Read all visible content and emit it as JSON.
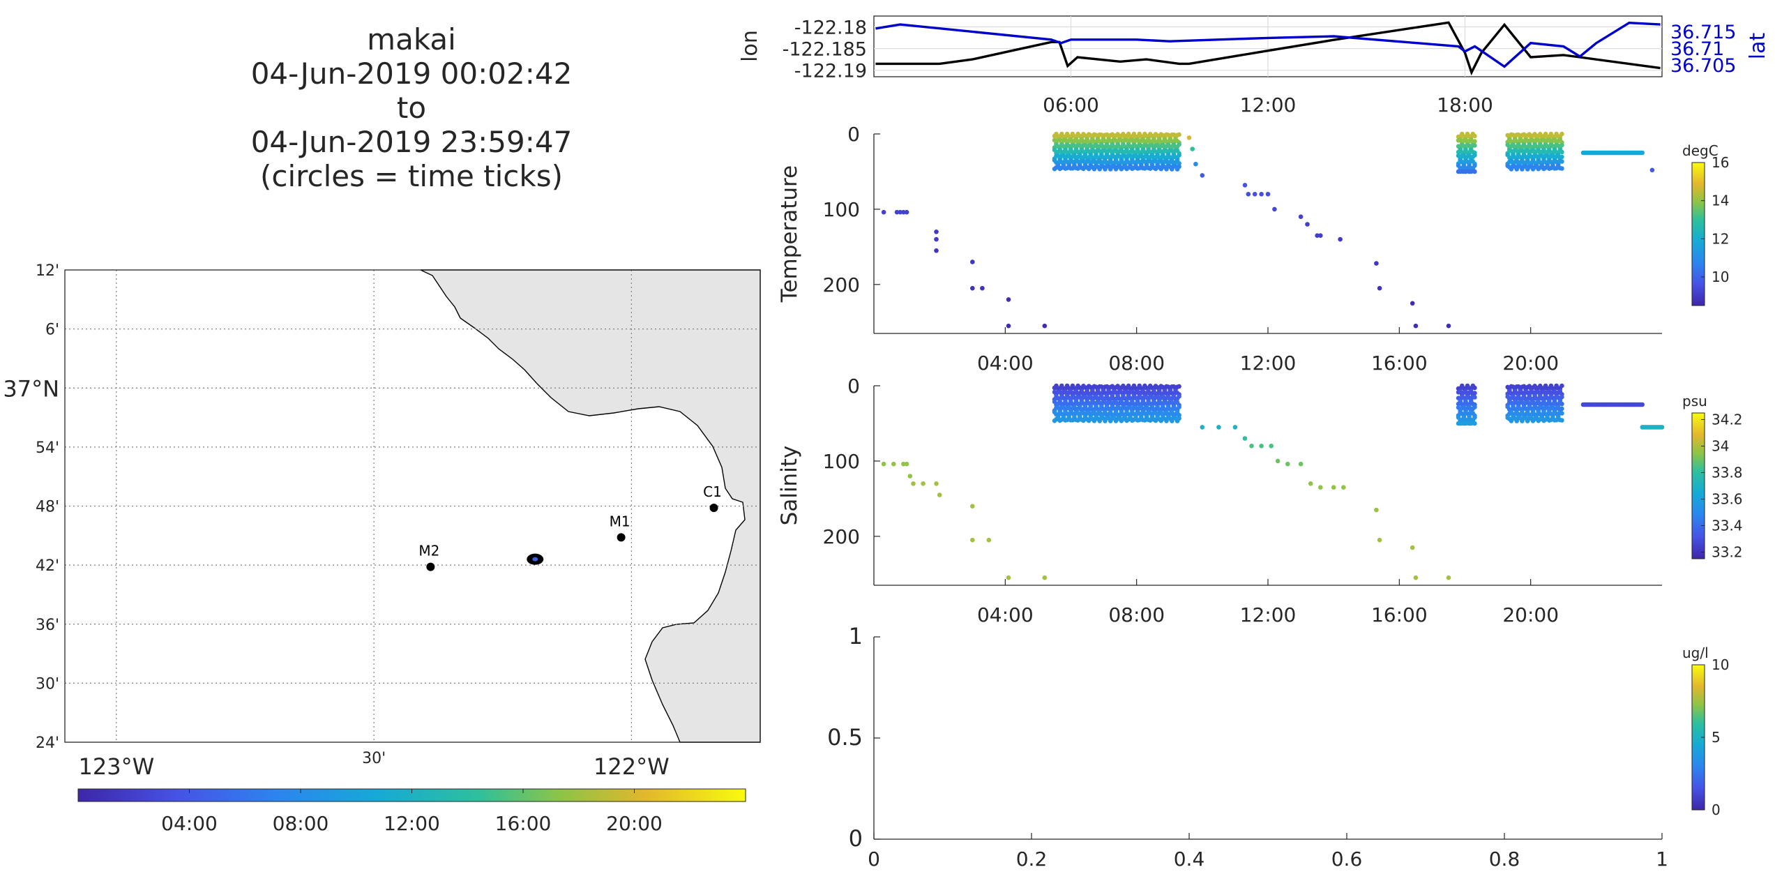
{
  "title": {
    "line1": "makai",
    "line2": "04-Jun-2019 00:02:42",
    "line3": "to",
    "line4": "04-Jun-2019 23:59:47",
    "line5": "(circles = time ticks)"
  },
  "chart_data": [
    {
      "type": "map",
      "lat_ticks": [
        "12'",
        "6'",
        "37°N",
        "54'",
        "48'",
        "42'",
        "36'",
        "30'",
        "24'"
      ],
      "lat_values": [
        37.2,
        37.1,
        37.0,
        36.9,
        36.8,
        36.7,
        36.6,
        36.5,
        36.4
      ],
      "lon_ticks": [
        "123°W",
        "30'",
        "122°W"
      ],
      "lon_values": [
        -123.0,
        -122.5,
        -122.0
      ],
      "xlim": [
        -123.1,
        -121.75
      ],
      "ylim": [
        36.4,
        37.2
      ],
      "stations": [
        {
          "name": "C1",
          "lon": -121.84,
          "lat": 36.797
        },
        {
          "name": "M1",
          "lon": -122.02,
          "lat": 36.747
        },
        {
          "name": "M2",
          "lon": -122.39,
          "lat": 36.697
        }
      ],
      "vehicle_position": {
        "lon": -122.187,
        "lat": 36.71
      },
      "colorbar": {
        "ticks": [
          "04:00",
          "08:00",
          "12:00",
          "16:00",
          "20:00"
        ],
        "tick_values": [
          4,
          8,
          12,
          16,
          20
        ],
        "range": [
          0,
          24
        ]
      }
    },
    {
      "type": "line",
      "ylabel": "lon",
      "y2label": "lat",
      "x_ticks": [
        "06:00",
        "12:00",
        "18:00"
      ],
      "x_tick_values": [
        6,
        12,
        18
      ],
      "xlim": [
        0,
        24
      ],
      "ylim": [
        -122.1915,
        -122.1775
      ],
      "y_ticks": [
        "-122.18",
        "-122.185",
        "-122.19"
      ],
      "y_tick_values": [
        -122.18,
        -122.185,
        -122.19
      ],
      "y2lim": [
        36.7015,
        36.7195
      ],
      "y2_ticks": [
        "36.715",
        "36.71",
        "36.705"
      ],
      "y2_tick_values": [
        36.715,
        36.71,
        36.705
      ],
      "series": [
        {
          "name": "lon",
          "color": "#000000",
          "x": [
            0.05,
            2.0,
            3.0,
            4.2,
            5.4,
            5.65,
            5.9,
            6.2,
            7.5,
            8.3,
            9.3,
            9.6,
            12.0,
            14.0,
            17.5,
            18.0,
            18.2,
            18.5,
            19.2,
            20.0,
            21.0,
            21.5,
            23.95
          ],
          "y": [
            -122.1885,
            -122.1885,
            -122.1875,
            -122.1855,
            -122.1835,
            -122.1835,
            -122.189,
            -122.187,
            -122.188,
            -122.1875,
            -122.1885,
            -122.1885,
            -122.1855,
            -122.183,
            -122.179,
            -122.186,
            -122.1905,
            -122.186,
            -122.1795,
            -122.187,
            -122.1865,
            -122.187,
            -122.1895
          ]
        },
        {
          "name": "lat",
          "color": "#0000cc",
          "x": [
            0.05,
            0.8,
            5.4,
            5.7,
            6.0,
            8.0,
            9.0,
            12.0,
            14.0,
            17.8,
            18.0,
            18.3,
            18.6,
            19.2,
            20.0,
            21.0,
            21.5,
            22.0,
            23.0,
            23.95
          ],
          "y": [
            36.7158,
            36.717,
            36.7125,
            36.7115,
            36.7125,
            36.7125,
            36.712,
            36.713,
            36.7135,
            36.7105,
            36.709,
            36.7105,
            36.7085,
            36.7045,
            36.7115,
            36.7105,
            36.7075,
            36.7115,
            36.7175,
            36.717
          ]
        }
      ]
    },
    {
      "type": "scatter",
      "ylabel": "Temperature",
      "x_ticks": [
        "04:00",
        "08:00",
        "12:00",
        "16:00",
        "20:00"
      ],
      "x_tick_values": [
        4,
        8,
        12,
        16,
        20
      ],
      "xlim": [
        0,
        24
      ],
      "ylim": [
        0,
        265
      ],
      "y_reversed": true,
      "y_ticks": [
        "0",
        "100",
        "200"
      ],
      "y_tick_values": [
        0,
        100,
        200
      ],
      "colorbar": {
        "label": "degC",
        "ticks": [
          "16",
          "14",
          "12",
          "10"
        ],
        "tick_values": [
          16,
          14,
          12,
          10
        ],
        "range": [
          8.5,
          16
        ]
      },
      "profile_points": [
        [
          0.3,
          104,
          9.2
        ],
        [
          0.7,
          104,
          9.2
        ],
        [
          0.8,
          104,
          9.2
        ],
        [
          0.9,
          104,
          9.2
        ],
        [
          1.0,
          104,
          9.2
        ],
        [
          1.9,
          130,
          9.0
        ],
        [
          1.9,
          140,
          9.0
        ],
        [
          1.9,
          155,
          8.9
        ],
        [
          3.0,
          170,
          8.9
        ],
        [
          3.0,
          205,
          8.8
        ],
        [
          3.3,
          205,
          8.8
        ],
        [
          4.1,
          220,
          8.7
        ],
        [
          4.1,
          255,
          8.7
        ],
        [
          5.2,
          255,
          8.7
        ],
        [
          9.6,
          5,
          14.8
        ],
        [
          9.7,
          20,
          13.0
        ],
        [
          9.8,
          40,
          11.0
        ],
        [
          10.0,
          55,
          9.8
        ],
        [
          11.3,
          68,
          9.6
        ],
        [
          11.4,
          80,
          9.5
        ],
        [
          11.6,
          80,
          9.5
        ],
        [
          11.8,
          80,
          9.5
        ],
        [
          12.0,
          80,
          9.5
        ],
        [
          12.2,
          100,
          9.3
        ],
        [
          13.0,
          110,
          9.2
        ],
        [
          13.2,
          120,
          9.1
        ],
        [
          13.5,
          135,
          9.1
        ],
        [
          13.6,
          135,
          9.1
        ],
        [
          14.2,
          140,
          9.0
        ],
        [
          15.3,
          172,
          8.9
        ],
        [
          15.4,
          205,
          8.8
        ],
        [
          16.4,
          225,
          8.7
        ],
        [
          16.5,
          255,
          8.7
        ],
        [
          17.5,
          255,
          8.7
        ],
        [
          23.7,
          48,
          9.8
        ]
      ],
      "yo_blocks": [
        {
          "x_start": 5.5,
          "x_end": 9.3,
          "depth": [
            0,
            48
          ],
          "temp_surface": 14.5,
          "temp_deep": 10.2
        },
        {
          "x_start": 17.8,
          "x_end": 18.3,
          "depth": [
            0,
            50
          ],
          "temp_surface": 14.5,
          "temp_deep": 10.2
        },
        {
          "x_start": 19.3,
          "x_end": 21.0,
          "depth": [
            0,
            48
          ],
          "temp_surface": 14.5,
          "temp_deep": 10.2
        }
      ],
      "blocks_surface_tmp": [
        21.2,
        21.6,
        22.1,
        22.8,
        23.4,
        23.6
      ],
      "flat_segment": {
        "x_start": 21.6,
        "x_end": 23.4,
        "depth": 25,
        "temp": 11.8
      }
    },
    {
      "type": "scatter",
      "ylabel": "Salinity",
      "x_ticks": [
        "04:00",
        "08:00",
        "12:00",
        "16:00",
        "20:00"
      ],
      "x_tick_values": [
        4,
        8,
        12,
        16,
        20
      ],
      "xlim": [
        0,
        24
      ],
      "ylim": [
        0,
        265
      ],
      "y_reversed": true,
      "y_ticks": [
        "0",
        "100",
        "200"
      ],
      "y_tick_values": [
        0,
        100,
        200
      ],
      "colorbar": {
        "label": "psu",
        "ticks": [
          "34.2",
          "34",
          "33.8",
          "33.6",
          "33.4",
          "33.2"
        ],
        "tick_values": [
          34.2,
          34.0,
          33.8,
          33.6,
          33.4,
          33.2
        ],
        "range": [
          33.15,
          34.25
        ]
      },
      "profile_points": [
        [
          0.3,
          104,
          33.95
        ],
        [
          0.6,
          104,
          33.95
        ],
        [
          0.9,
          104,
          33.95
        ],
        [
          1.0,
          104,
          33.95
        ],
        [
          1.1,
          120,
          33.95
        ],
        [
          1.2,
          130,
          33.98
        ],
        [
          1.5,
          130,
          33.98
        ],
        [
          1.9,
          130,
          33.98
        ],
        [
          2.0,
          145,
          33.98
        ],
        [
          3.0,
          160,
          33.98
        ],
        [
          3.0,
          205,
          33.98
        ],
        [
          3.5,
          205,
          33.98
        ],
        [
          4.1,
          255,
          33.98
        ],
        [
          5.2,
          255,
          33.98
        ],
        [
          10.0,
          55,
          33.7
        ],
        [
          10.5,
          55,
          33.7
        ],
        [
          11.0,
          55,
          33.7
        ],
        [
          11.3,
          70,
          33.8
        ],
        [
          11.5,
          80,
          33.85
        ],
        [
          11.8,
          80,
          33.85
        ],
        [
          12.1,
          80,
          33.85
        ],
        [
          12.3,
          100,
          33.9
        ],
        [
          12.6,
          104,
          33.9
        ],
        [
          13.0,
          104,
          33.9
        ],
        [
          13.3,
          130,
          33.95
        ],
        [
          13.6,
          135,
          33.95
        ],
        [
          14.0,
          135,
          33.95
        ],
        [
          14.3,
          135,
          33.95
        ],
        [
          15.3,
          165,
          33.97
        ],
        [
          15.4,
          205,
          33.98
        ],
        [
          16.4,
          215,
          33.98
        ],
        [
          16.5,
          255,
          33.98
        ],
        [
          17.5,
          255,
          33.98
        ]
      ],
      "yo_blocks": [
        {
          "x_start": 5.5,
          "x_end": 9.3,
          "depth": [
            0,
            48
          ],
          "sal_surface": 33.25,
          "sal_deep": 33.6
        },
        {
          "x_start": 17.8,
          "x_end": 18.3,
          "depth": [
            0,
            50
          ],
          "sal_surface": 33.25,
          "sal_deep": 33.6
        },
        {
          "x_start": 19.3,
          "x_end": 21.0,
          "depth": [
            0,
            48
          ],
          "sal_surface": 33.25,
          "sal_deep": 33.6
        }
      ],
      "flat_segment": {
        "x_start": 21.6,
        "x_end": 23.4,
        "depth": 25,
        "sal": 33.28
      },
      "flat_segment_2": {
        "x_start": 23.4,
        "x_end": 24.0,
        "depth": 55,
        "sal": 33.7
      }
    },
    {
      "type": "scatter",
      "ylabel": "",
      "x_ticks": [
        "0",
        "0.2",
        "0.4",
        "0.6",
        "0.8",
        "1"
      ],
      "x_tick_values": [
        0,
        0.2,
        0.4,
        0.6,
        0.8,
        1
      ],
      "y_ticks": [
        "1",
        "0.5",
        "0"
      ],
      "y_tick_values": [
        1,
        0.5,
        0
      ],
      "xlim": [
        0,
        1
      ],
      "ylim": [
        0,
        1
      ],
      "colorbar": {
        "label": "ug/l",
        "ticks": [
          "10",
          "5",
          "0"
        ],
        "tick_values": [
          10,
          5,
          0
        ],
        "range": [
          0,
          10
        ]
      },
      "points": []
    }
  ]
}
